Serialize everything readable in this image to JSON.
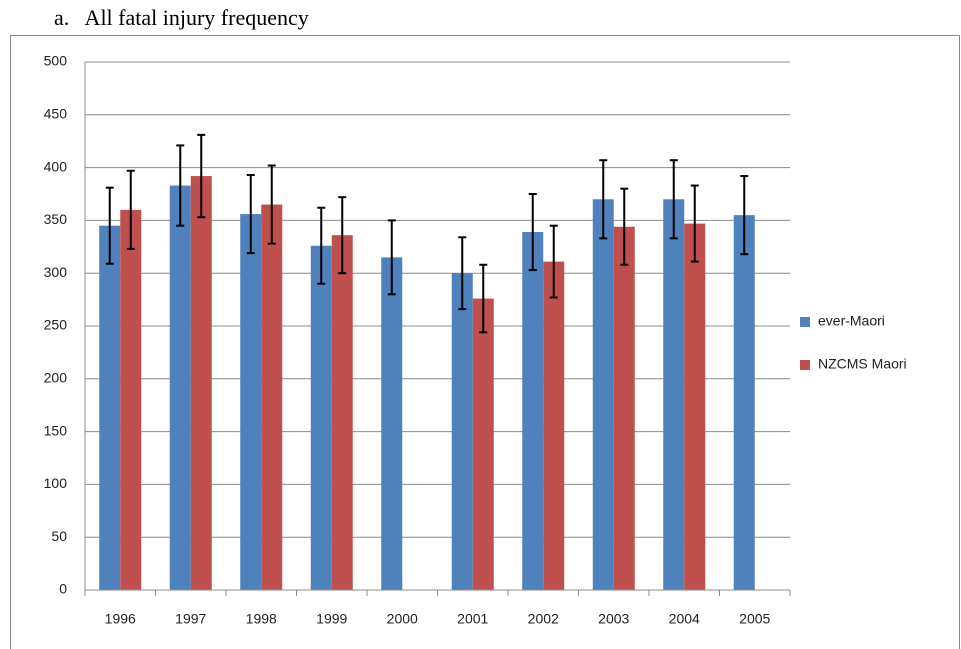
{
  "chart_data": {
    "type": "bar",
    "title": "a.   All fatal injury frequency",
    "categories": [
      "1996",
      "1997",
      "1998",
      "1999",
      "2000",
      "2001",
      "2002",
      "2003",
      "2004",
      "2005"
    ],
    "series": [
      {
        "name": "ever-Maori",
        "color": "#4f81bd",
        "values": [
          345,
          383,
          356,
          326,
          315,
          300,
          339,
          370,
          370,
          355
        ],
        "errors": [
          36,
          38,
          37,
          36,
          35,
          34,
          36,
          37,
          37,
          37
        ]
      },
      {
        "name": "NZCMS Maori",
        "color": "#c0504d",
        "values": [
          360,
          392,
          365,
          336,
          null,
          276,
          311,
          344,
          347,
          null
        ],
        "errors": [
          37,
          39,
          37,
          36,
          null,
          32,
          34,
          36,
          36,
          null
        ]
      }
    ],
    "ylim": [
      0,
      500
    ],
    "yticks": [
      0,
      50,
      100,
      150,
      200,
      250,
      300,
      350,
      400,
      450,
      500
    ],
    "grid": true,
    "legend": "right"
  }
}
